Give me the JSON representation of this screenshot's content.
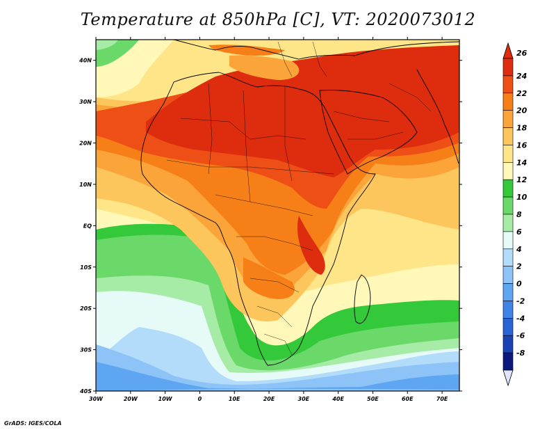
{
  "title": "Temperature at 850hPa [C], VT: 2020073012",
  "credit": "GrADS: IGES/COLA",
  "map": {
    "lon_range": [
      -30,
      75
    ],
    "lat_range": [
      -40,
      45
    ],
    "lat_ticks": [
      {
        "value": 40,
        "label": "40N"
      },
      {
        "value": 30,
        "label": "30N"
      },
      {
        "value": 20,
        "label": "20N"
      },
      {
        "value": 10,
        "label": "10N"
      },
      {
        "value": 0,
        "label": "EQ"
      },
      {
        "value": -10,
        "label": "10S"
      },
      {
        "value": -20,
        "label": "20S"
      },
      {
        "value": -30,
        "label": "30S"
      },
      {
        "value": -40,
        "label": "40S"
      }
    ],
    "lon_ticks": [
      {
        "value": -30,
        "label": "30W"
      },
      {
        "value": -20,
        "label": "20W"
      },
      {
        "value": -10,
        "label": "10W"
      },
      {
        "value": 0,
        "label": "0"
      },
      {
        "value": 10,
        "label": "10E"
      },
      {
        "value": 20,
        "label": "20E"
      },
      {
        "value": 30,
        "label": "30E"
      },
      {
        "value": 40,
        "label": "40E"
      },
      {
        "value": 50,
        "label": "50E"
      },
      {
        "value": 60,
        "label": "60E"
      },
      {
        "value": 70,
        "label": "70E"
      }
    ]
  },
  "colorbar": {
    "levels": [
      {
        "label": "26",
        "color": "#de2d0e"
      },
      {
        "label": "24",
        "color": "#ee4f16"
      },
      {
        "label": "22",
        "color": "#f77f18"
      },
      {
        "label": "20",
        "color": "#fba43a"
      },
      {
        "label": "18",
        "color": "#fdc65c"
      },
      {
        "label": "16",
        "color": "#fee588"
      },
      {
        "label": "14",
        "color": "#fff8b8"
      },
      {
        "label": "12",
        "color": "#33c93a"
      },
      {
        "label": "10",
        "color": "#6ad96a"
      },
      {
        "label": "8",
        "color": "#a7eca6"
      },
      {
        "label": "6",
        "color": "#e6fbf7"
      },
      {
        "label": "4",
        "color": "#b2dcfa"
      },
      {
        "label": "2",
        "color": "#8ec3f8"
      },
      {
        "label": "0",
        "color": "#5fa6f2"
      },
      {
        "label": "-2",
        "color": "#3f85e6"
      },
      {
        "label": "-4",
        "color": "#2a64d4"
      },
      {
        "label": "-6",
        "color": "#1b42b2"
      },
      {
        "label": "-8",
        "color": "#0b1a7a"
      }
    ],
    "above_color": "#de2d0e",
    "below_color": "#e0e4ff"
  }
}
